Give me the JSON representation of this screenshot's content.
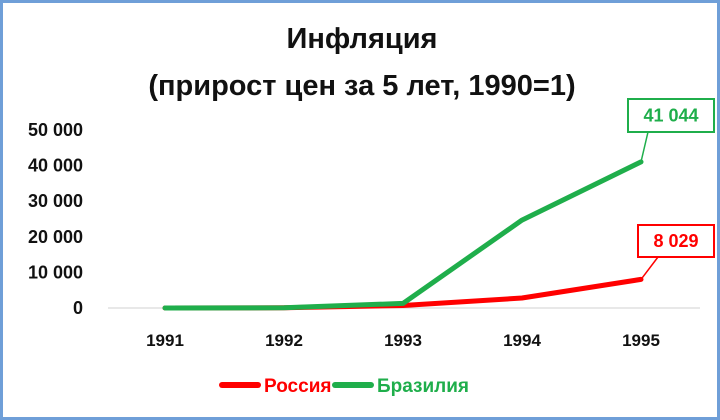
{
  "chart_data": {
    "type": "line",
    "title_lines": [
      "Инфляция",
      "(прирост цен за 5 лет, 1990=1)"
    ],
    "categories": [
      "1991",
      "1992",
      "1993",
      "1994",
      "1995"
    ],
    "y_ticks": [
      "0",
      "10 000",
      "20 000",
      "30 000",
      "40 000",
      "50 000"
    ],
    "ylim": [
      0,
      50000
    ],
    "grid": false,
    "legend_position": "bottom",
    "series": [
      {
        "name": "Россия",
        "color": "#ff0000",
        "values": [
          2.6,
          70,
          700,
          2800,
          8029
        ],
        "end_label": "8 029"
      },
      {
        "name": "Бразилия",
        "color": "#1fae4b",
        "values": [
          5,
          65,
          1300,
          24700,
          41044
        ],
        "end_label": "41 044"
      }
    ]
  }
}
